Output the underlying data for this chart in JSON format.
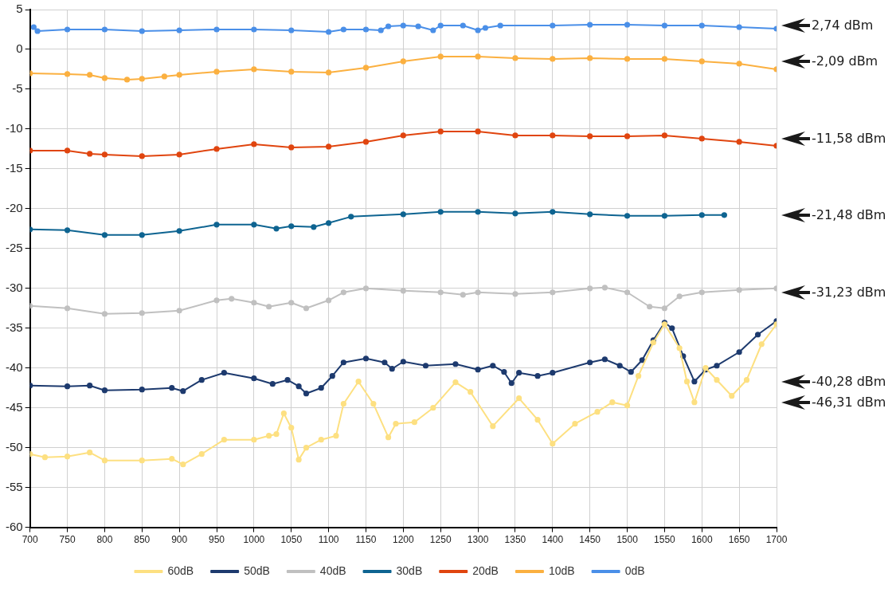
{
  "chart_data": {
    "type": "line",
    "marker": "circle",
    "grid": true,
    "legend": "bottom",
    "xlim": [
      700,
      1700
    ],
    "xticks": [
      700,
      750,
      800,
      850,
      900,
      950,
      1000,
      1050,
      1100,
      1150,
      1200,
      1250,
      1300,
      1350,
      1400,
      1450,
      1500,
      1550,
      1600,
      1650,
      1700
    ],
    "ylim": [
      -60,
      5
    ],
    "yticks": [
      -60,
      -55,
      -50,
      -45,
      -40,
      -35,
      -30,
      -25,
      -20,
      -15,
      -10,
      -5,
      0,
      5
    ],
    "annotations": [
      "2,74 dBm",
      "-2,09 dBm",
      "-11,58 dBm",
      "-21,48 dBm",
      "-31,23 dBm",
      "-40,28 dBm",
      "-46,31 dBm"
    ],
    "series": [
      {
        "name": "0dB",
        "color": "#4a8fe8",
        "x": [
          705,
          710,
          750,
          800,
          850,
          900,
          950,
          1000,
          1050,
          1100,
          1120,
          1150,
          1170,
          1180,
          1200,
          1220,
          1240,
          1250,
          1280,
          1300,
          1310,
          1330,
          1400,
          1450,
          1500,
          1550,
          1600,
          1650,
          1700
        ],
        "values": [
          2.8,
          2.3,
          2.5,
          2.5,
          2.3,
          2.4,
          2.5,
          2.5,
          2.4,
          2.2,
          2.5,
          2.5,
          2.4,
          2.9,
          3.0,
          2.9,
          2.4,
          3.0,
          3.0,
          2.4,
          2.7,
          3.0,
          3.0,
          3.1,
          3.1,
          3.0,
          3.0,
          2.8,
          2.6
        ]
      },
      {
        "name": "10dB",
        "color": "#fbb040",
        "x": [
          700,
          750,
          780,
          800,
          830,
          850,
          880,
          900,
          950,
          1000,
          1050,
          1100,
          1150,
          1200,
          1250,
          1300,
          1350,
          1400,
          1450,
          1500,
          1550,
          1600,
          1650,
          1700
        ],
        "values": [
          -3.0,
          -3.1,
          -3.2,
          -3.6,
          -3.8,
          -3.7,
          -3.4,
          -3.2,
          -2.8,
          -2.5,
          -2.8,
          -2.9,
          -2.3,
          -1.5,
          -0.9,
          -0.9,
          -1.1,
          -1.2,
          -1.1,
          -1.2,
          -1.2,
          -1.5,
          -1.8,
          -2.5
        ]
      },
      {
        "name": "20dB",
        "color": "#e0450f",
        "x": [
          700,
          750,
          780,
          800,
          850,
          900,
          950,
          1000,
          1050,
          1100,
          1150,
          1200,
          1250,
          1300,
          1350,
          1400,
          1450,
          1500,
          1550,
          1600,
          1650,
          1700
        ],
        "values": [
          -12.7,
          -12.7,
          -13.1,
          -13.2,
          -13.4,
          -13.2,
          -12.5,
          -11.9,
          -12.3,
          -12.2,
          -11.6,
          -10.8,
          -10.3,
          -10.3,
          -10.8,
          -10.8,
          -10.9,
          -10.9,
          -10.8,
          -11.2,
          -11.6,
          -12.1
        ]
      },
      {
        "name": "30dB",
        "color": "#0e6491",
        "x": [
          700,
          750,
          800,
          850,
          900,
          950,
          1000,
          1030,
          1050,
          1080,
          1100,
          1130,
          1200,
          1250,
          1300,
          1350,
          1400,
          1450,
          1500,
          1550,
          1600,
          1630
        ],
        "values": [
          -22.6,
          -22.7,
          -23.3,
          -23.3,
          -22.8,
          -22.0,
          -22.0,
          -22.5,
          -22.2,
          -22.3,
          -21.8,
          -21.0,
          -20.7,
          -20.4,
          -20.4,
          -20.6,
          -20.4,
          -20.7,
          -20.9,
          -20.9,
          -20.8,
          -20.8
        ]
      },
      {
        "name": "40dB",
        "color": "#c0c0c0",
        "x": [
          700,
          750,
          800,
          850,
          900,
          950,
          970,
          1000,
          1020,
          1050,
          1070,
          1100,
          1120,
          1150,
          1200,
          1250,
          1280,
          1300,
          1350,
          1400,
          1450,
          1470,
          1500,
          1530,
          1550,
          1570,
          1600,
          1650,
          1700
        ],
        "values": [
          -32.2,
          -32.5,
          -33.2,
          -33.1,
          -32.8,
          -31.5,
          -31.3,
          -31.8,
          -32.3,
          -31.8,
          -32.5,
          -31.5,
          -30.5,
          -30.0,
          -30.3,
          -30.5,
          -30.8,
          -30.5,
          -30.7,
          -30.5,
          -30.0,
          -29.9,
          -30.5,
          -32.3,
          -32.5,
          -31.0,
          -30.5,
          -30.2,
          -30.0
        ]
      },
      {
        "name": "50dB",
        "color": "#1d3a6e",
        "x": [
          700,
          750,
          780,
          800,
          850,
          890,
          905,
          930,
          960,
          1000,
          1025,
          1045,
          1060,
          1070,
          1090,
          1105,
          1120,
          1150,
          1175,
          1185,
          1200,
          1230,
          1270,
          1300,
          1320,
          1335,
          1345,
          1355,
          1380,
          1400,
          1450,
          1470,
          1490,
          1505,
          1520,
          1535,
          1550,
          1560,
          1575,
          1590,
          1605,
          1620,
          1650,
          1675,
          1700
        ],
        "values": [
          -42.2,
          -42.3,
          -42.2,
          -42.8,
          -42.7,
          -42.5,
          -42.9,
          -41.5,
          -40.6,
          -41.3,
          -42.0,
          -41.5,
          -42.3,
          -43.2,
          -42.5,
          -41.0,
          -39.3,
          -38.8,
          -39.3,
          -40.1,
          -39.2,
          -39.7,
          -39.5,
          -40.2,
          -39.7,
          -40.5,
          -41.9,
          -40.6,
          -41.0,
          -40.6,
          -39.3,
          -38.9,
          -39.7,
          -40.5,
          -39.0,
          -36.5,
          -34.3,
          -35.0,
          -38.5,
          -41.7,
          -40.2,
          -39.7,
          -38.0,
          -35.8,
          -34.1
        ]
      },
      {
        "name": "60dB",
        "color": "#fde081",
        "x": [
          700,
          720,
          750,
          780,
          800,
          850,
          890,
          905,
          930,
          960,
          1000,
          1020,
          1030,
          1040,
          1050,
          1060,
          1070,
          1090,
          1110,
          1120,
          1140,
          1160,
          1180,
          1190,
          1215,
          1240,
          1270,
          1290,
          1320,
          1355,
          1380,
          1400,
          1430,
          1460,
          1480,
          1500,
          1515,
          1535,
          1550,
          1570,
          1580,
          1590,
          1605,
          1620,
          1640,
          1660,
          1680,
          1700
        ],
        "values": [
          -50.8,
          -51.2,
          -51.1,
          -50.6,
          -51.6,
          -51.6,
          -51.4,
          -52.1,
          -50.8,
          -49.0,
          -49.0,
          -48.5,
          -48.3,
          -45.7,
          -47.5,
          -51.5,
          -50.0,
          -49.0,
          -48.5,
          -44.5,
          -41.7,
          -44.5,
          -48.7,
          -47.0,
          -46.8,
          -45.0,
          -41.8,
          -43.0,
          -47.3,
          -43.8,
          -46.5,
          -49.5,
          -47.0,
          -45.5,
          -44.3,
          -44.7,
          -41.0,
          -36.8,
          -34.5,
          -37.5,
          -41.7,
          -44.3,
          -40.0,
          -41.5,
          -43.5,
          -41.5,
          -37.0,
          -34.5
        ]
      }
    ]
  }
}
